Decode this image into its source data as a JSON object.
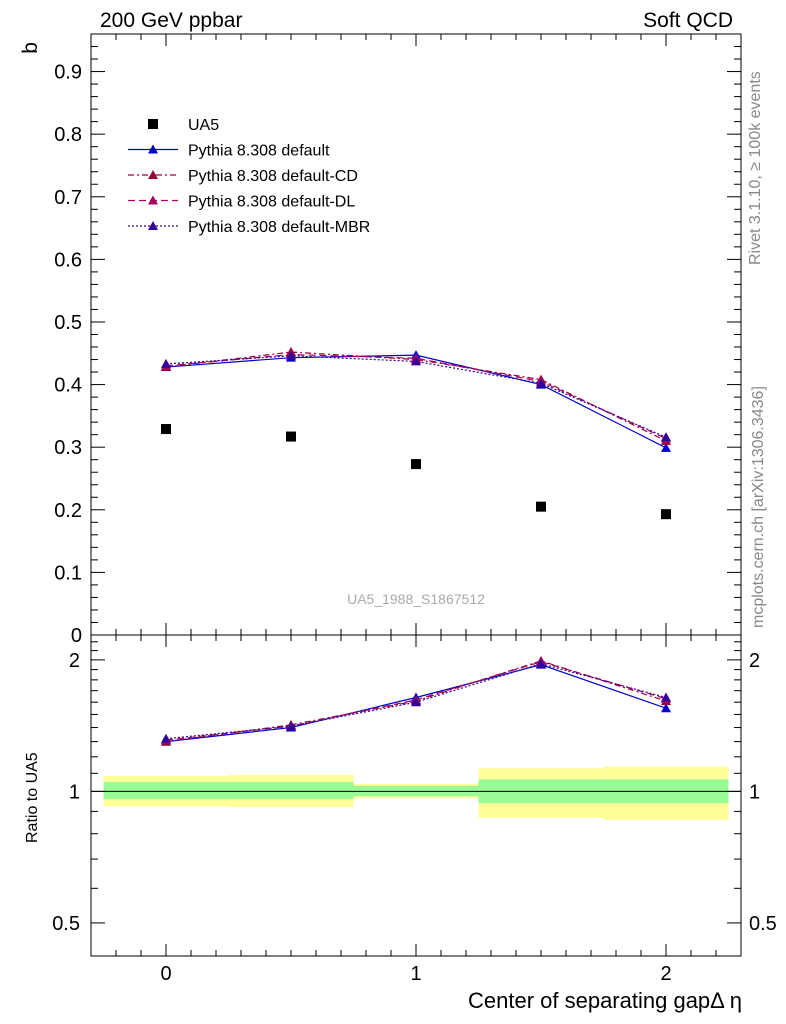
{
  "header": {
    "left": "200 GeV ppbar",
    "right": "Soft QCD"
  },
  "side_labels": {
    "top": "Rivet 3.1.10, ≥ 100k events",
    "bottom": "mcplots.cern.ch [arXiv:1306.3436]"
  },
  "watermark": "UA5_1988_S1867512",
  "chart_data": [
    {
      "type": "scatter",
      "panel": "main",
      "ylabel": "b",
      "xlabel": "Center of separating gapΔ η",
      "xlim": [
        -0.3,
        2.3
      ],
      "ylim": [
        0,
        0.96
      ],
      "yticks": [
        {
          "v": 0,
          "label": "0"
        },
        {
          "v": 0.1,
          "label": "0.1"
        },
        {
          "v": 0.2,
          "label": "0.2"
        },
        {
          "v": 0.3,
          "label": "0.3"
        },
        {
          "v": 0.4,
          "label": "0.4"
        },
        {
          "v": 0.5,
          "label": "0.5"
        },
        {
          "v": 0.6,
          "label": "0.6"
        },
        {
          "v": 0.7,
          "label": "0.7"
        },
        {
          "v": 0.8,
          "label": "0.8"
        },
        {
          "v": 0.9,
          "label": "0.9"
        }
      ],
      "x": [
        0,
        0.5,
        1,
        1.5,
        2
      ],
      "series": [
        {
          "name": "UA5",
          "marker": "square",
          "color": "#000000",
          "values": [
            0.329,
            0.317,
            0.273,
            0.205,
            0.193
          ]
        },
        {
          "name": "Pythia 8.308 default",
          "marker": "triangle",
          "line": "solid",
          "color": "#0000cc",
          "values": [
            0.428,
            0.443,
            0.447,
            0.4,
            0.299
          ]
        },
        {
          "name": "Pythia 8.308 default-CD",
          "marker": "triangle",
          "line": "dashdot",
          "color": "#990033",
          "values": [
            0.428,
            0.452,
            0.44,
            0.408,
            0.31
          ]
        },
        {
          "name": "Pythia 8.308 default-DL",
          "marker": "triangle",
          "line": "dashed",
          "color": "#aa0066",
          "values": [
            0.43,
            0.448,
            0.442,
            0.405,
            0.314
          ]
        },
        {
          "name": "Pythia 8.308 default-MBR",
          "marker": "triangle",
          "line": "dotted",
          "color": "#330099",
          "values": [
            0.433,
            0.446,
            0.437,
            0.402,
            0.316
          ]
        }
      ]
    },
    {
      "type": "line",
      "panel": "ratio",
      "ylabel": "Ratio to UA5",
      "xlabel": "Center of separating gapΔ η",
      "xlim": [
        -0.3,
        2.3
      ],
      "ylim": [
        0.42,
        2.28
      ],
      "scale": "log",
      "xticks": [
        {
          "v": 0,
          "label": "0"
        },
        {
          "v": 1,
          "label": "1"
        },
        {
          "v": 2,
          "label": "2"
        }
      ],
      "yticks": [
        {
          "v": 0.5,
          "label": "0.5"
        },
        {
          "v": 1,
          "label": "1"
        },
        {
          "v": 2,
          "label": "2"
        }
      ],
      "bands": [
        {
          "x0": -0.25,
          "x1": 0.25,
          "inner": [
            0.96,
            1.05
          ],
          "outer": [
            0.925,
            1.085
          ]
        },
        {
          "x0": 0.25,
          "x1": 0.75,
          "inner": [
            0.96,
            1.05
          ],
          "outer": [
            0.92,
            1.09
          ]
        },
        {
          "x0": 0.75,
          "x1": 1.25,
          "inner": [
            0.975,
            1.03
          ],
          "outer": [
            0.965,
            1.04
          ]
        },
        {
          "x0": 1.25,
          "x1": 1.75,
          "inner": [
            0.94,
            1.065
          ],
          "outer": [
            0.87,
            1.13
          ]
        },
        {
          "x0": 1.75,
          "x1": 2.25,
          "inner": [
            0.94,
            1.065
          ],
          "outer": [
            0.86,
            1.14
          ]
        }
      ],
      "x": [
        0,
        0.5,
        1,
        1.5,
        2
      ],
      "series": [
        {
          "name": "Pythia 8.308 default",
          "line": "solid",
          "color": "#0000cc",
          "values": [
            1.3,
            1.4,
            1.64,
            1.95,
            1.55
          ]
        },
        {
          "name": "Pythia 8.308 default-CD",
          "line": "dashdot",
          "color": "#990033",
          "values": [
            1.3,
            1.42,
            1.61,
            1.99,
            1.61
          ]
        },
        {
          "name": "Pythia 8.308 default-DL",
          "line": "dashed",
          "color": "#aa0066",
          "values": [
            1.31,
            1.41,
            1.62,
            1.98,
            1.63
          ]
        },
        {
          "name": "Pythia 8.308 default-MBR",
          "line": "dotted",
          "color": "#330099",
          "values": [
            1.32,
            1.41,
            1.6,
            1.96,
            1.64
          ]
        }
      ]
    }
  ],
  "colors": {
    "band_inner": "#98fb98",
    "band_outer": "#ffff99"
  }
}
